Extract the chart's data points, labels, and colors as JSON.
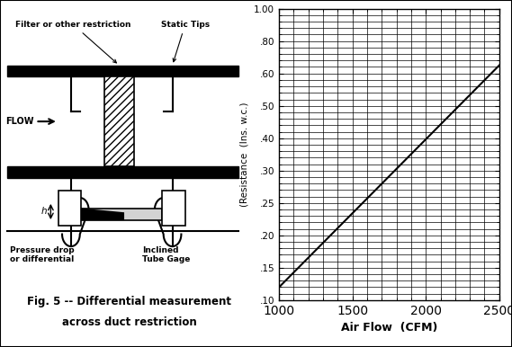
{
  "figure_width": 5.69,
  "figure_height": 3.86,
  "dpi": 100,
  "background_color": "#ffffff",
  "border_color": "#000000",
  "xlabel": "Air Flow  (CFM)",
  "ylabel": "(Resistance  (Ins. w.c.)",
  "xlabel_fontsize": 9,
  "ylabel_fontsize": 7.5,
  "xmin": 1000,
  "xmax": 2500,
  "ymin": 0.1,
  "ymax": 1.0,
  "xticks": [
    1000,
    1500,
    2000,
    2500
  ],
  "yticks_major": [
    0.1,
    0.15,
    0.2,
    0.25,
    0.3,
    0.4,
    0.5,
    0.6,
    0.8,
    1.0
  ],
  "ytick_labels": [
    ".10",
    ".15",
    ".20",
    ".25",
    ".30",
    ".40",
    ".50",
    ".60",
    ".80",
    "1.00"
  ],
  "line_x": [
    1000,
    2500
  ],
  "line_y": [
    0.12,
    0.65
  ],
  "line_color": "#000000",
  "line_width": 1.5,
  "grid_color": "#000000",
  "grid_linewidth": 0.5,
  "fig_caption_line1": "Fig. 5 -- Differential measurement",
  "fig_caption_line2": "across duct restriction",
  "fig_caption_fontsize": 8.5,
  "diagram_label_filter": "Filter or other restriction",
  "diagram_label_static": "Static Tips",
  "diagram_label_pressure": "Pressure drop\nor differential",
  "diagram_label_inclined": "Inclined\nTube Gage",
  "diagram_label_h": "h"
}
